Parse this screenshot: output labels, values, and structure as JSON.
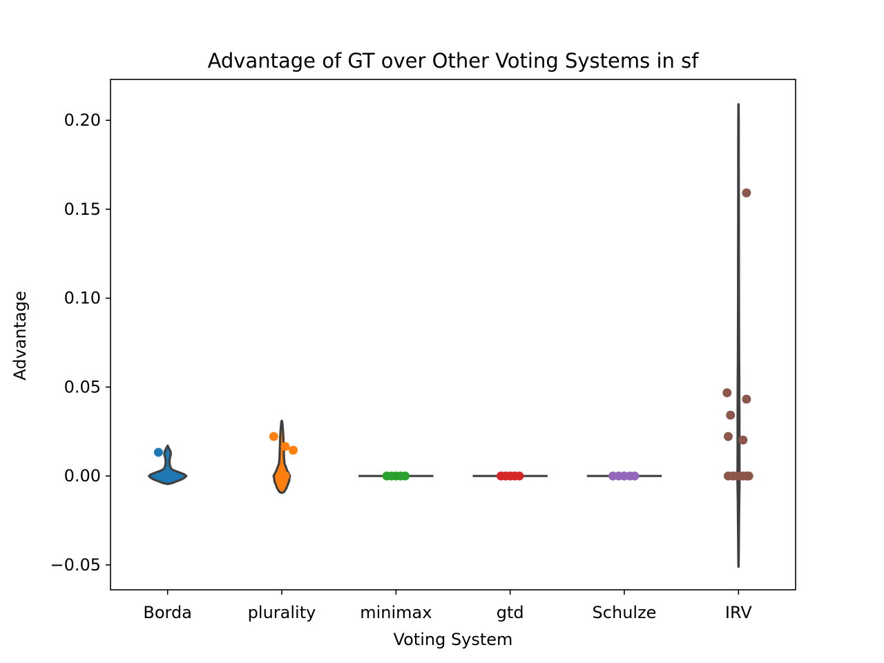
{
  "chart_data": {
    "type": "violin",
    "title": "Advantage of GT over Other Voting Systems in sf",
    "xlabel": "Voting System",
    "ylabel": "Advantage",
    "ylim": [
      -0.064,
      0.223
    ],
    "yticks": [
      -0.05,
      0.0,
      0.05,
      0.1,
      0.15,
      0.2
    ],
    "ytick_labels": [
      "−0.05",
      "0.00",
      "0.05",
      "0.10",
      "0.15",
      "0.20"
    ],
    "grid": false,
    "categories": [
      "Borda",
      "plurality",
      "minimax",
      "gtd",
      "Schulze",
      "IRV"
    ],
    "colors": [
      "#1f77b4",
      "#ff7f0e",
      "#2ca02c",
      "#d62728",
      "#9467bd",
      "#8c564b"
    ],
    "series": [
      {
        "category": "Borda",
        "points": [
          {
            "offset": -0.08,
            "value": 0.0133
          },
          {
            "offset": 0.0,
            "value": 0.0
          },
          {
            "offset": 0.02,
            "value": 0.0
          },
          {
            "offset": -0.03,
            "value": 0.0
          }
        ],
        "violin": [
          [
            -0.0045,
            0.003
          ],
          [
            -0.004,
            0.1
          ],
          [
            -0.003,
            0.2
          ],
          [
            -0.002,
            0.3
          ],
          [
            -0.001,
            0.37
          ],
          [
            0.0,
            0.41
          ],
          [
            0.001,
            0.36
          ],
          [
            0.002,
            0.26
          ],
          [
            0.003,
            0.15
          ],
          [
            0.004,
            0.08
          ],
          [
            0.006,
            0.05
          ],
          [
            0.008,
            0.04
          ],
          [
            0.01,
            0.05
          ],
          [
            0.012,
            0.07
          ],
          [
            0.013,
            0.07
          ],
          [
            0.014,
            0.06
          ],
          [
            0.015,
            0.04
          ],
          [
            0.016,
            0.02
          ],
          [
            0.017,
            0.003
          ]
        ]
      },
      {
        "category": "plurality",
        "points": [
          {
            "offset": -0.07,
            "value": 0.0222
          },
          {
            "offset": 0.03,
            "value": 0.0166
          },
          {
            "offset": 0.1,
            "value": 0.0145
          },
          {
            "offset": 0.0,
            "value": 0.0
          },
          {
            "offset": 0.03,
            "value": 0.0
          }
        ],
        "violin": [
          [
            -0.0095,
            0.003
          ],
          [
            -0.009,
            0.05
          ],
          [
            -0.007,
            0.1
          ],
          [
            -0.005,
            0.13
          ],
          [
            -0.003,
            0.16
          ],
          [
            -0.001,
            0.17
          ],
          [
            0.0,
            0.18
          ],
          [
            0.001,
            0.16
          ],
          [
            0.003,
            0.12
          ],
          [
            0.005,
            0.09
          ],
          [
            0.007,
            0.06
          ],
          [
            0.01,
            0.05
          ],
          [
            0.014,
            0.045
          ],
          [
            0.018,
            0.04
          ],
          [
            0.022,
            0.035
          ],
          [
            0.026,
            0.025
          ],
          [
            0.028,
            0.018
          ],
          [
            0.03,
            0.012
          ],
          [
            0.031,
            0.003
          ]
        ]
      },
      {
        "category": "minimax",
        "points": [
          {
            "offset": -0.08,
            "value": 0.0
          },
          {
            "offset": -0.04,
            "value": 0.0
          },
          {
            "offset": 0.0,
            "value": 0.0
          },
          {
            "offset": 0.04,
            "value": 0.0
          },
          {
            "offset": 0.08,
            "value": 0.0
          }
        ],
        "flat_value": 0.0
      },
      {
        "category": "gtd",
        "points": [
          {
            "offset": -0.08,
            "value": 0.0
          },
          {
            "offset": -0.04,
            "value": 0.0
          },
          {
            "offset": 0.0,
            "value": 0.0
          },
          {
            "offset": 0.04,
            "value": 0.0
          },
          {
            "offset": 0.08,
            "value": 0.0
          }
        ],
        "flat_value": 0.0
      },
      {
        "category": "Schulze",
        "points": [
          {
            "offset": -0.1,
            "value": 0.0
          },
          {
            "offset": -0.05,
            "value": 0.0
          },
          {
            "offset": 0.0,
            "value": 0.0
          },
          {
            "offset": 0.05,
            "value": 0.0
          },
          {
            "offset": 0.09,
            "value": 0.0
          }
        ],
        "flat_value": 0.0
      },
      {
        "category": "IRV",
        "points": [
          {
            "offset": 0.07,
            "value": 0.1592
          },
          {
            "offset": -0.1,
            "value": 0.0468
          },
          {
            "offset": 0.07,
            "value": 0.0432
          },
          {
            "offset": -0.07,
            "value": 0.0342
          },
          {
            "offset": -0.09,
            "value": 0.0222
          },
          {
            "offset": 0.04,
            "value": 0.0202
          },
          {
            "offset": -0.09,
            "value": 0.0
          },
          {
            "offset": -0.05,
            "value": 0.0
          },
          {
            "offset": -0.02,
            "value": 0.0
          },
          {
            "offset": 0.01,
            "value": 0.0
          },
          {
            "offset": 0.04,
            "value": 0.0
          },
          {
            "offset": 0.07,
            "value": 0.0
          },
          {
            "offset": 0.09,
            "value": 0.0
          }
        ],
        "violin": [
          [
            -0.051,
            0.002
          ],
          [
            -0.045,
            0.005
          ],
          [
            -0.035,
            0.008
          ],
          [
            -0.025,
            0.012
          ],
          [
            -0.015,
            0.016
          ],
          [
            -0.005,
            0.022
          ],
          [
            0.0,
            0.024
          ],
          [
            0.005,
            0.022
          ],
          [
            0.015,
            0.02
          ],
          [
            0.025,
            0.02
          ],
          [
            0.035,
            0.02
          ],
          [
            0.045,
            0.018
          ],
          [
            0.055,
            0.017
          ],
          [
            0.065,
            0.014
          ],
          [
            0.08,
            0.012
          ],
          [
            0.1,
            0.01
          ],
          [
            0.12,
            0.009
          ],
          [
            0.14,
            0.008
          ],
          [
            0.16,
            0.007
          ],
          [
            0.18,
            0.006
          ],
          [
            0.2,
            0.005
          ],
          [
            0.209,
            0.002
          ]
        ]
      }
    ]
  }
}
